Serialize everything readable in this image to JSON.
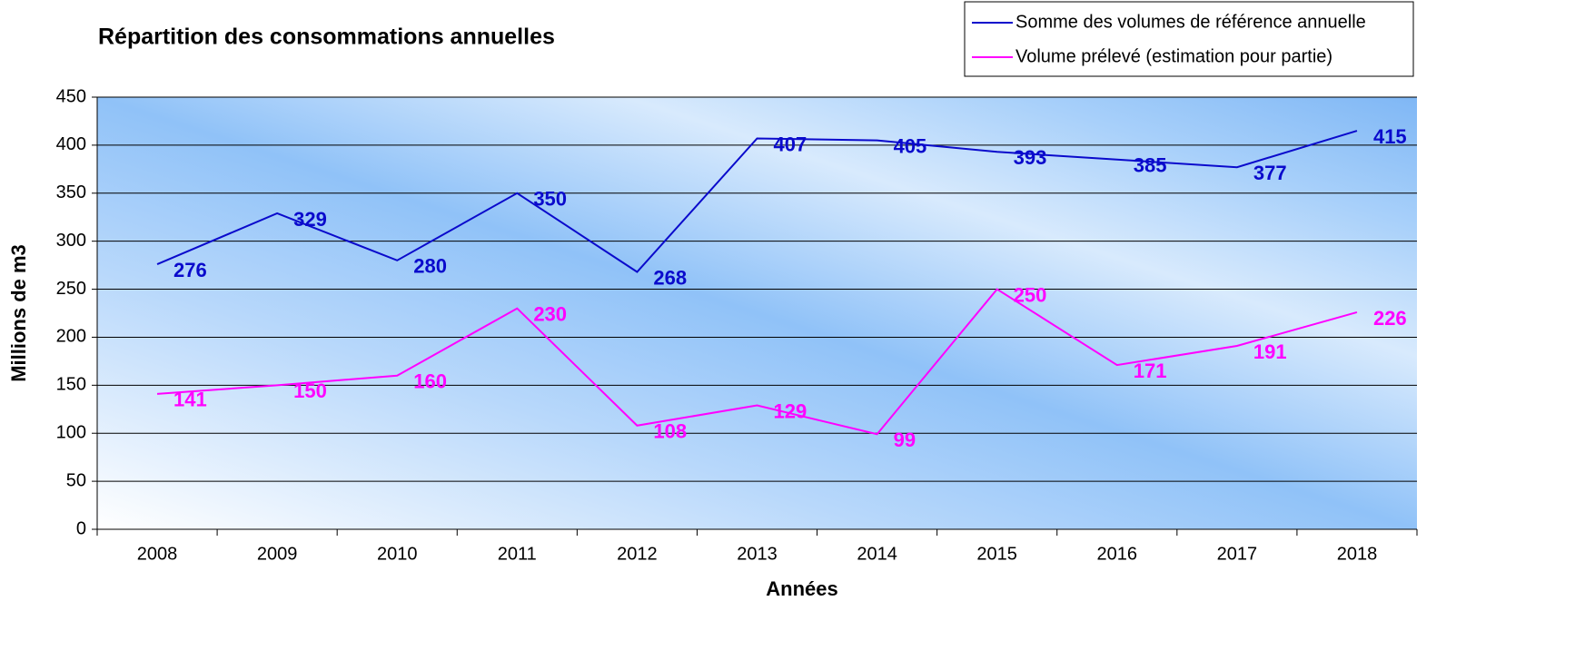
{
  "chart_data": {
    "type": "line",
    "title": "Répartition des consommations annuelles",
    "x_label": "Années",
    "y_label": "Millions de m3",
    "categories": [
      "2008",
      "2009",
      "2010",
      "2011",
      "2012",
      "2013",
      "2014",
      "2015",
      "2016",
      "2017",
      "2018"
    ],
    "series": [
      {
        "name": "Somme des volumes de référence annuelle",
        "color": "#0a0acc",
        "values": [
          276,
          329,
          280,
          350,
          268,
          407,
          405,
          393,
          385,
          377,
          415
        ]
      },
      {
        "name": "Volume prélevé (estimation pour partie)",
        "color": "#ff00ff",
        "values": [
          141,
          150,
          160,
          230,
          108,
          129,
          99,
          250,
          171,
          191,
          226
        ]
      }
    ],
    "ylim": [
      0,
      450
    ],
    "yticks": [
      0,
      50,
      100,
      150,
      200,
      250,
      300,
      350,
      400,
      450
    ],
    "grid": true,
    "legend": "top-right"
  }
}
